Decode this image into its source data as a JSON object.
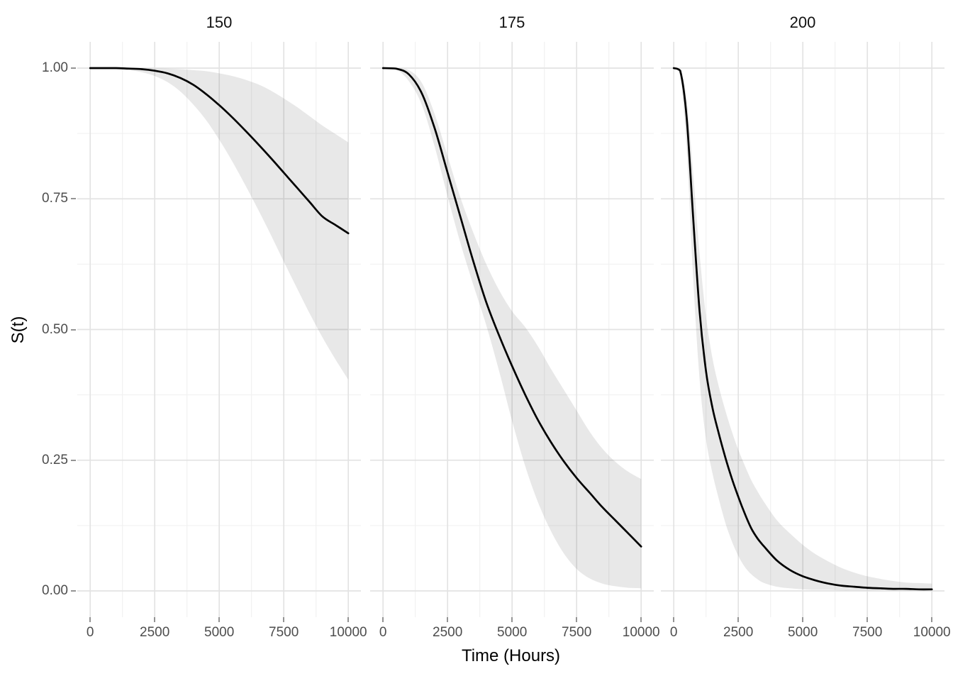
{
  "figure": {
    "x_axis": {
      "title": "Time (Hours)",
      "ticks": [
        0,
        2500,
        5000,
        7500,
        10000
      ],
      "tick_labels": [
        "0",
        "2500",
        "5000",
        "7500",
        "10000"
      ],
      "minor_ticks": [
        1250,
        3750,
        6250,
        8750
      ]
    },
    "y_axis": {
      "title": "S(t)",
      "ticks": [
        0,
        0.25,
        0.5,
        0.75,
        1
      ],
      "tick_labels": [
        "0.00",
        "0.25",
        "0.50",
        "0.75",
        "1.00"
      ],
      "minor_ticks": [
        0.125,
        0.375,
        0.625,
        0.875
      ]
    },
    "colors": {
      "curve": "#000000",
      "band_fill": "#545454",
      "band_opacity": 0.135,
      "grid_major": "#e3e3e3",
      "grid_minor": "#f0f0f0",
      "tick_text": "#4d4d4d",
      "tick_mark": "#949494",
      "strip_text": "#111111",
      "axis_title_text": "#000000",
      "background": "#ffffff"
    }
  },
  "chart_data": {
    "type": "line",
    "title": "",
    "xlabel": "Time (Hours)",
    "ylabel": "S(t)",
    "xlim": [
      0,
      10000
    ],
    "ylim": [
      0,
      1
    ],
    "grid": "on",
    "legend": "none",
    "description": "Faceted parametric survival curves S(t) with shaded confidence bands, one panel per stress level (150, 175, 200).",
    "facets": [
      {
        "label": "150",
        "t": [
          0,
          500,
          1000,
          1500,
          2000,
          2500,
          3000,
          3500,
          4000,
          4500,
          5000,
          5500,
          6000,
          6500,
          7000,
          7500,
          8000,
          8500,
          9000,
          9500,
          10000
        ],
        "estimate": [
          1,
          1,
          1,
          0.999,
          0.998,
          0.995,
          0.99,
          0.981,
          0.968,
          0.95,
          0.929,
          0.906,
          0.881,
          0.855,
          0.828,
          0.8,
          0.772,
          0.744,
          0.716,
          0.7,
          0.684
        ],
        "lower": [
          1,
          0.9995,
          0.998,
          0.996,
          0.992,
          0.985,
          0.973,
          0.955,
          0.93,
          0.9,
          0.863,
          0.822,
          0.777,
          0.73,
          0.681,
          0.63,
          0.58,
          0.531,
          0.485,
          0.443,
          0.404
        ],
        "upper": [
          1,
          1,
          1,
          1,
          1,
          0.9995,
          0.999,
          0.998,
          0.996,
          0.994,
          0.99,
          0.985,
          0.978,
          0.969,
          0.957,
          0.942,
          0.926,
          0.908,
          0.89,
          0.874,
          0.858
        ]
      },
      {
        "label": "175",
        "t": [
          0,
          500,
          1000,
          1500,
          2000,
          2500,
          3000,
          3500,
          4000,
          4500,
          5000,
          5500,
          6000,
          6500,
          7000,
          7500,
          8000,
          8500,
          9000,
          9500,
          10000
        ],
        "estimate": [
          1,
          0.999,
          0.988,
          0.952,
          0.885,
          0.8,
          0.715,
          0.63,
          0.552,
          0.488,
          0.43,
          0.376,
          0.327,
          0.285,
          0.248,
          0.216,
          0.188,
          0.16,
          0.135,
          0.11,
          0.085
        ],
        "lower": [
          1,
          0.998,
          0.975,
          0.93,
          0.85,
          0.755,
          0.665,
          0.585,
          0.508,
          0.42,
          0.325,
          0.24,
          0.17,
          0.115,
          0.072,
          0.042,
          0.024,
          0.014,
          0.009,
          0.006,
          0.005
        ],
        "upper": [
          1,
          1,
          0.996,
          0.972,
          0.912,
          0.832,
          0.752,
          0.685,
          0.625,
          0.575,
          0.535,
          0.505,
          0.468,
          0.425,
          0.385,
          0.345,
          0.305,
          0.272,
          0.247,
          0.228,
          0.214
        ]
      },
      {
        "label": "200",
        "t": [
          0,
          250,
          500,
          750,
          1000,
          1250,
          1500,
          1750,
          2000,
          2250,
          2500,
          2750,
          3000,
          3250,
          3500,
          4000,
          4500,
          5000,
          5500,
          6000,
          6500,
          7000,
          7500,
          8000,
          8500,
          9000,
          9500,
          10000
        ],
        "estimate": [
          1,
          0.995,
          0.905,
          0.715,
          0.535,
          0.42,
          0.35,
          0.3,
          0.255,
          0.215,
          0.18,
          0.148,
          0.12,
          0.1,
          0.085,
          0.058,
          0.04,
          0.028,
          0.02,
          0.014,
          0.01,
          0.008,
          0.006,
          0.005,
          0.004,
          0.004,
          0.003,
          0.003
        ],
        "lower": [
          1,
          0.985,
          0.845,
          0.6,
          0.405,
          0.29,
          0.225,
          0.175,
          0.13,
          0.095,
          0.067,
          0.046,
          0.032,
          0.022,
          0.015,
          0.008,
          0.005,
          0.003,
          0.002,
          0.002,
          0.001,
          0.001,
          0.001,
          0.001,
          0.001,
          0.001,
          0.001,
          0.001
        ],
        "upper": [
          1,
          0.998,
          0.94,
          0.8,
          0.645,
          0.525,
          0.445,
          0.39,
          0.345,
          0.305,
          0.27,
          0.24,
          0.212,
          0.19,
          0.17,
          0.135,
          0.11,
          0.088,
          0.07,
          0.056,
          0.044,
          0.035,
          0.028,
          0.023,
          0.019,
          0.016,
          0.015,
          0.014
        ]
      }
    ]
  }
}
